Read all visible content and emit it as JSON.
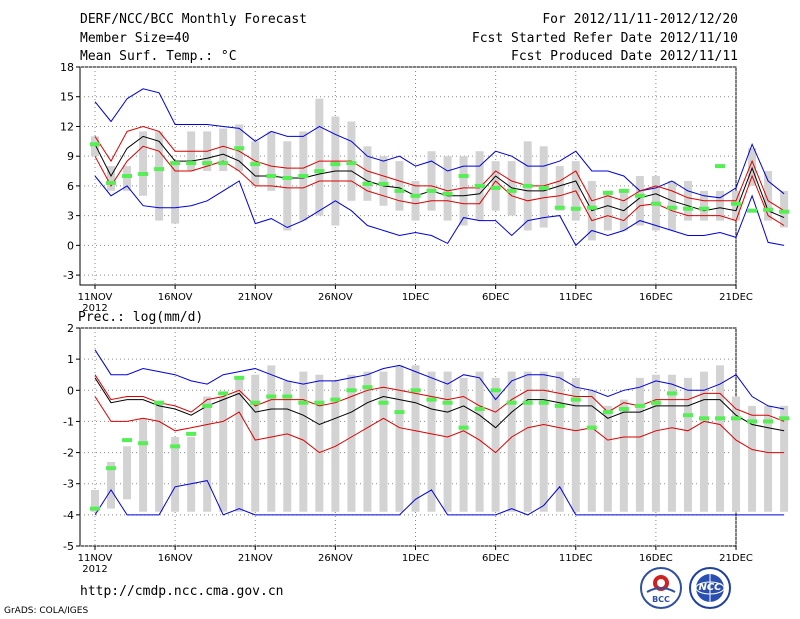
{
  "header": {
    "title": "DERF/NCC/BCC Monthly Forecast",
    "member_size": "Member Size=40",
    "variable": "Mean Surf. Temp.: °C",
    "period": "For 2012/11/11-2012/12/20",
    "fcst_started": "Fcst Started Refer Date 2012/11/10",
    "fcst_produced": "Fcst Produced Date 2012/11/11"
  },
  "footer": {
    "url": "http://cmdp.ncc.cma.gov.cn",
    "credit": "GrADS: COLA/IGES",
    "logo1_text": "BCC",
    "logo2_text": "NCC"
  },
  "colors": {
    "envelope": "#0000dd",
    "spread": "#dd0000",
    "mean": "#000000",
    "box": "#d3d3d3",
    "marker": "#55ee55"
  },
  "chart_data": [
    {
      "type": "line",
      "title": "Mean Surf. Temp.: °C",
      "x_tick_labels": [
        "11NOV",
        "16NOV",
        "21NOV",
        "26NOV",
        "1DEC",
        "6DEC",
        "11DEC",
        "16DEC",
        "21DEC"
      ],
      "x_year_label": "2012",
      "ylim": [
        -4,
        18
      ],
      "yticks": [
        -3,
        0,
        3,
        6,
        9,
        12,
        15,
        18
      ],
      "series": [
        {
          "name": "max",
          "values": [
            14.5,
            12.5,
            14.8,
            15.8,
            15.4,
            12.2,
            12.2,
            12.2,
            12.0,
            11.8,
            10.5,
            11.5,
            11.0,
            11.0,
            12.0,
            11.2,
            10.5,
            9.0,
            8.5,
            9.0,
            8.0,
            8.5,
            7.5,
            8.0,
            8.0,
            9.5,
            9.0,
            8.0,
            8.0,
            8.5,
            9.5,
            7.5,
            7.5,
            7.0,
            5.5,
            5.8,
            6.5,
            5.5,
            5.0,
            4.8,
            5.8,
            10.2,
            6.5,
            5.2
          ]
        },
        {
          "name": "upper",
          "values": [
            11.0,
            8.5,
            11.5,
            12.0,
            11.5,
            9.5,
            9.5,
            9.5,
            10.0,
            9.5,
            8.5,
            8.0,
            7.8,
            7.8,
            8.5,
            8.5,
            8.5,
            7.5,
            7.0,
            6.5,
            6.0,
            6.0,
            5.5,
            5.8,
            5.8,
            7.5,
            6.5,
            6.0,
            6.0,
            6.5,
            7.5,
            4.5,
            5.0,
            4.5,
            5.5,
            6.0,
            5.5,
            4.8,
            4.5,
            4.5,
            4.5,
            8.5,
            4.5,
            3.5
          ]
        },
        {
          "name": "mean",
          "values": [
            10.2,
            7.0,
            9.8,
            11.0,
            10.5,
            8.5,
            8.5,
            8.8,
            9.2,
            8.5,
            7.0,
            7.0,
            6.8,
            6.8,
            7.2,
            7.5,
            7.5,
            6.5,
            6.0,
            5.8,
            5.0,
            5.5,
            5.0,
            5.0,
            5.2,
            7.0,
            5.8,
            5.5,
            5.5,
            6.0,
            6.5,
            3.5,
            4.0,
            3.5,
            4.8,
            5.2,
            4.5,
            4.0,
            3.5,
            3.8,
            3.5,
            7.8,
            3.5,
            2.8
          ]
        },
        {
          "name": "lower",
          "values": [
            9.0,
            6.0,
            8.5,
            10.0,
            9.5,
            7.5,
            7.5,
            8.0,
            8.5,
            7.5,
            6.0,
            6.0,
            5.8,
            5.8,
            6.5,
            6.5,
            6.5,
            5.5,
            5.0,
            4.5,
            4.2,
            4.5,
            4.5,
            4.2,
            4.2,
            6.5,
            5.0,
            4.5,
            4.8,
            5.0,
            5.5,
            2.5,
            3.0,
            2.5,
            4.0,
            4.2,
            3.5,
            3.0,
            3.0,
            3.0,
            2.5,
            7.0,
            3.0,
            2.0
          ]
        },
        {
          "name": "min",
          "values": [
            7.0,
            5.0,
            6.0,
            4.0,
            3.8,
            3.8,
            4.0,
            4.5,
            5.5,
            6.5,
            2.2,
            2.7,
            1.8,
            2.5,
            3.5,
            4.5,
            3.5,
            2.0,
            1.5,
            1.0,
            1.3,
            1.0,
            0.2,
            2.8,
            2.5,
            2.5,
            1.0,
            2.5,
            2.8,
            3.0,
            0.0,
            1.5,
            1.0,
            1.5,
            2.5,
            2.0,
            1.5,
            1.0,
            1.0,
            1.3,
            0.8,
            5.0,
            0.3,
            0.0
          ]
        },
        {
          "name": "box_high",
          "values": [
            11.0,
            8.0,
            8.0,
            11.5,
            11.5,
            8.5,
            11.5,
            11.5,
            11.8,
            12.2,
            10.5,
            11.5,
            10.5,
            11.5,
            14.8,
            13.0,
            12.5,
            10.0,
            9.0,
            8.5,
            6.5,
            9.5,
            9.0,
            9.0,
            9.5,
            8.5,
            8.5,
            10.5,
            10.0,
            8.0,
            8.5,
            6.5,
            5.5,
            5.5,
            7.0,
            7.0,
            6.5,
            6.5,
            5.5,
            5.5,
            5.5,
            9.8,
            7.5,
            5.5
          ]
        },
        {
          "name": "box_low",
          "values": [
            9.0,
            5.5,
            5.5,
            5.0,
            2.5,
            2.2,
            7.5,
            7.5,
            7.5,
            7.5,
            6.0,
            5.5,
            1.5,
            2.5,
            3.0,
            2.0,
            4.5,
            4.5,
            4.0,
            3.5,
            2.5,
            3.5,
            2.5,
            2.0,
            2.5,
            3.5,
            3.0,
            1.5,
            1.8,
            3.5,
            2.5,
            0.5,
            1.5,
            1.5,
            2.0,
            1.5,
            1.5,
            2.5,
            2.5,
            2.5,
            2.5,
            6.0,
            2.5,
            1.8
          ]
        },
        {
          "name": "observed",
          "values": [
            10.2,
            6.3,
            7.0,
            7.2,
            7.7,
            8.3,
            8.3,
            8.3,
            8.3,
            9.8,
            8.2,
            7.0,
            6.8,
            7.0,
            7.5,
            8.2,
            8.3,
            6.2,
            6.2,
            5.5,
            5.0,
            5.5,
            5.2,
            7.0,
            6.0,
            5.8,
            5.5,
            6.0,
            5.8,
            3.8,
            3.7,
            3.8,
            5.3,
            5.5,
            5.0,
            4.2,
            3.8,
            3.7,
            3.7,
            8.0,
            4.2,
            3.5,
            3.6,
            3.4
          ]
        }
      ]
    },
    {
      "type": "line",
      "title": "Prec.: log(mm/d)",
      "x_tick_labels": [
        "11NOV",
        "16NOV",
        "21NOV",
        "26NOV",
        "1DEC",
        "6DEC",
        "11DEC",
        "16DEC",
        "21DEC"
      ],
      "x_year_label": "2012",
      "ylim": [
        -5,
        2
      ],
      "yticks": [
        -5,
        -4,
        -3,
        -2,
        -1,
        0,
        1,
        2
      ],
      "series": [
        {
          "name": "max",
          "values": [
            1.3,
            0.5,
            0.5,
            0.7,
            0.6,
            0.5,
            0.3,
            0.2,
            0.5,
            0.6,
            0.7,
            0.5,
            0.3,
            0.2,
            0.3,
            0.3,
            0.4,
            0.5,
            0.7,
            0.8,
            0.6,
            0.4,
            0.2,
            0.5,
            0.4,
            -0.3,
            0.3,
            0.5,
            0.5,
            0.4,
            0.1,
            0.0,
            -0.2,
            0.0,
            0.1,
            0.3,
            0.2,
            0.0,
            0.0,
            0.2,
            0.5,
            -0.2,
            -0.5,
            -0.6
          ]
        },
        {
          "name": "upper",
          "values": [
            0.5,
            -0.3,
            -0.2,
            -0.2,
            -0.4,
            -0.5,
            -0.7,
            -0.3,
            -0.2,
            0.0,
            -0.5,
            -0.3,
            -0.3,
            -0.3,
            -0.5,
            -0.4,
            -0.2,
            0.0,
            0.1,
            0.0,
            -0.1,
            -0.2,
            -0.3,
            -0.2,
            -0.5,
            -0.7,
            -0.3,
            0.0,
            0.0,
            -0.1,
            -0.2,
            -0.2,
            -0.7,
            -0.4,
            -0.5,
            -0.3,
            -0.3,
            -0.3,
            -0.1,
            -0.1,
            -0.6,
            -0.8,
            -0.8,
            -1.0
          ]
        },
        {
          "name": "mean",
          "values": [
            0.4,
            -0.4,
            -0.3,
            -0.3,
            -0.5,
            -0.6,
            -0.8,
            -0.5,
            -0.3,
            -0.1,
            -0.7,
            -0.6,
            -0.6,
            -0.8,
            -1.1,
            -0.9,
            -0.7,
            -0.4,
            -0.2,
            -0.3,
            -0.4,
            -0.6,
            -0.7,
            -0.5,
            -0.8,
            -1.2,
            -0.7,
            -0.3,
            -0.3,
            -0.4,
            -0.5,
            -0.5,
            -0.9,
            -0.7,
            -0.7,
            -0.5,
            -0.5,
            -0.5,
            -0.3,
            -0.3,
            -0.8,
            -1.1,
            -1.2,
            -1.3
          ]
        },
        {
          "name": "lower",
          "values": [
            -0.2,
            -1.0,
            -1.0,
            -0.9,
            -1.0,
            -1.3,
            -1.2,
            -1.1,
            -1.0,
            -0.7,
            -1.6,
            -1.5,
            -1.4,
            -1.6,
            -2.0,
            -1.8,
            -1.5,
            -1.2,
            -0.9,
            -1.2,
            -1.3,
            -1.4,
            -1.5,
            -1.3,
            -1.6,
            -2.0,
            -1.5,
            -1.2,
            -1.1,
            -1.2,
            -1.3,
            -1.2,
            -1.6,
            -1.5,
            -1.5,
            -1.3,
            -1.2,
            -1.3,
            -1.0,
            -1.1,
            -1.6,
            -1.9,
            -2.0,
            -2.0
          ]
        },
        {
          "name": "min",
          "values": [
            -4.0,
            -3.2,
            -4.0,
            -4.0,
            -4.0,
            -3.1,
            -3.0,
            -2.9,
            -4.0,
            -3.8,
            -4.0,
            -4.0,
            -4.0,
            -4.0,
            -4.0,
            -4.0,
            -4.0,
            -4.0,
            -4.0,
            -4.0,
            -3.5,
            -3.2,
            -4.0,
            -4.0,
            -4.0,
            -4.0,
            -3.8,
            -4.0,
            -3.7,
            -3.1,
            -4.0,
            -4.0,
            -4.0,
            -4.0,
            -4.0,
            -4.0,
            -4.0,
            -4.0,
            -4.0,
            -4.0,
            -4.0,
            -4.0,
            -4.0,
            -4.0
          ]
        },
        {
          "name": "box_high",
          "values": [
            -3.2,
            -2.3,
            -1.8,
            -0.9,
            -0.4,
            -1.5,
            -1.5,
            -0.2,
            -0.2,
            0.4,
            0.5,
            0.8,
            0.3,
            0.6,
            0.5,
            0.3,
            0.5,
            0.6,
            0.6,
            0.8,
            0.8,
            0.6,
            0.6,
            0.4,
            0.6,
            0.4,
            0.6,
            0.6,
            0.6,
            0.6,
            0.4,
            0.0,
            -0.5,
            -0.3,
            0.4,
            0.5,
            0.5,
            0.4,
            0.6,
            0.8,
            -0.2,
            -0.5,
            -0.5,
            -0.5
          ]
        },
        {
          "name": "box_low",
          "values": [
            -3.9,
            -3.8,
            -3.5,
            -3.9,
            -3.9,
            -3.9,
            -3.9,
            -3.9,
            -3.9,
            -3.9,
            -3.9,
            -3.9,
            -3.9,
            -3.9,
            -3.9,
            -3.9,
            -3.9,
            -3.9,
            -3.9,
            -3.9,
            -3.9,
            -3.9,
            -3.9,
            -3.9,
            -3.9,
            -3.9,
            -3.9,
            -3.9,
            -3.9,
            -3.9,
            -3.9,
            -3.9,
            -3.9,
            -3.9,
            -3.9,
            -3.9,
            -3.9,
            -3.9,
            -3.9,
            -3.9,
            -3.9,
            -3.9,
            -3.9,
            -3.9
          ]
        },
        {
          "name": "observed",
          "values": [
            -3.8,
            -2.5,
            -1.6,
            -1.7,
            -0.4,
            -1.8,
            -1.4,
            -0.5,
            -0.1,
            0.4,
            -0.4,
            -0.2,
            -0.2,
            -0.4,
            -0.4,
            -0.3,
            0.0,
            0.1,
            -0.4,
            -0.7,
            0.0,
            -0.3,
            -0.4,
            -1.2,
            -0.6,
            0.0,
            -0.4,
            -0.4,
            -0.4,
            -0.5,
            -0.3,
            -1.2,
            -0.7,
            -0.6,
            -0.5,
            -0.4,
            -0.1,
            -0.8,
            -0.9,
            -0.9,
            -0.9,
            -1.0,
            -1.0,
            -0.9
          ]
        }
      ]
    }
  ]
}
